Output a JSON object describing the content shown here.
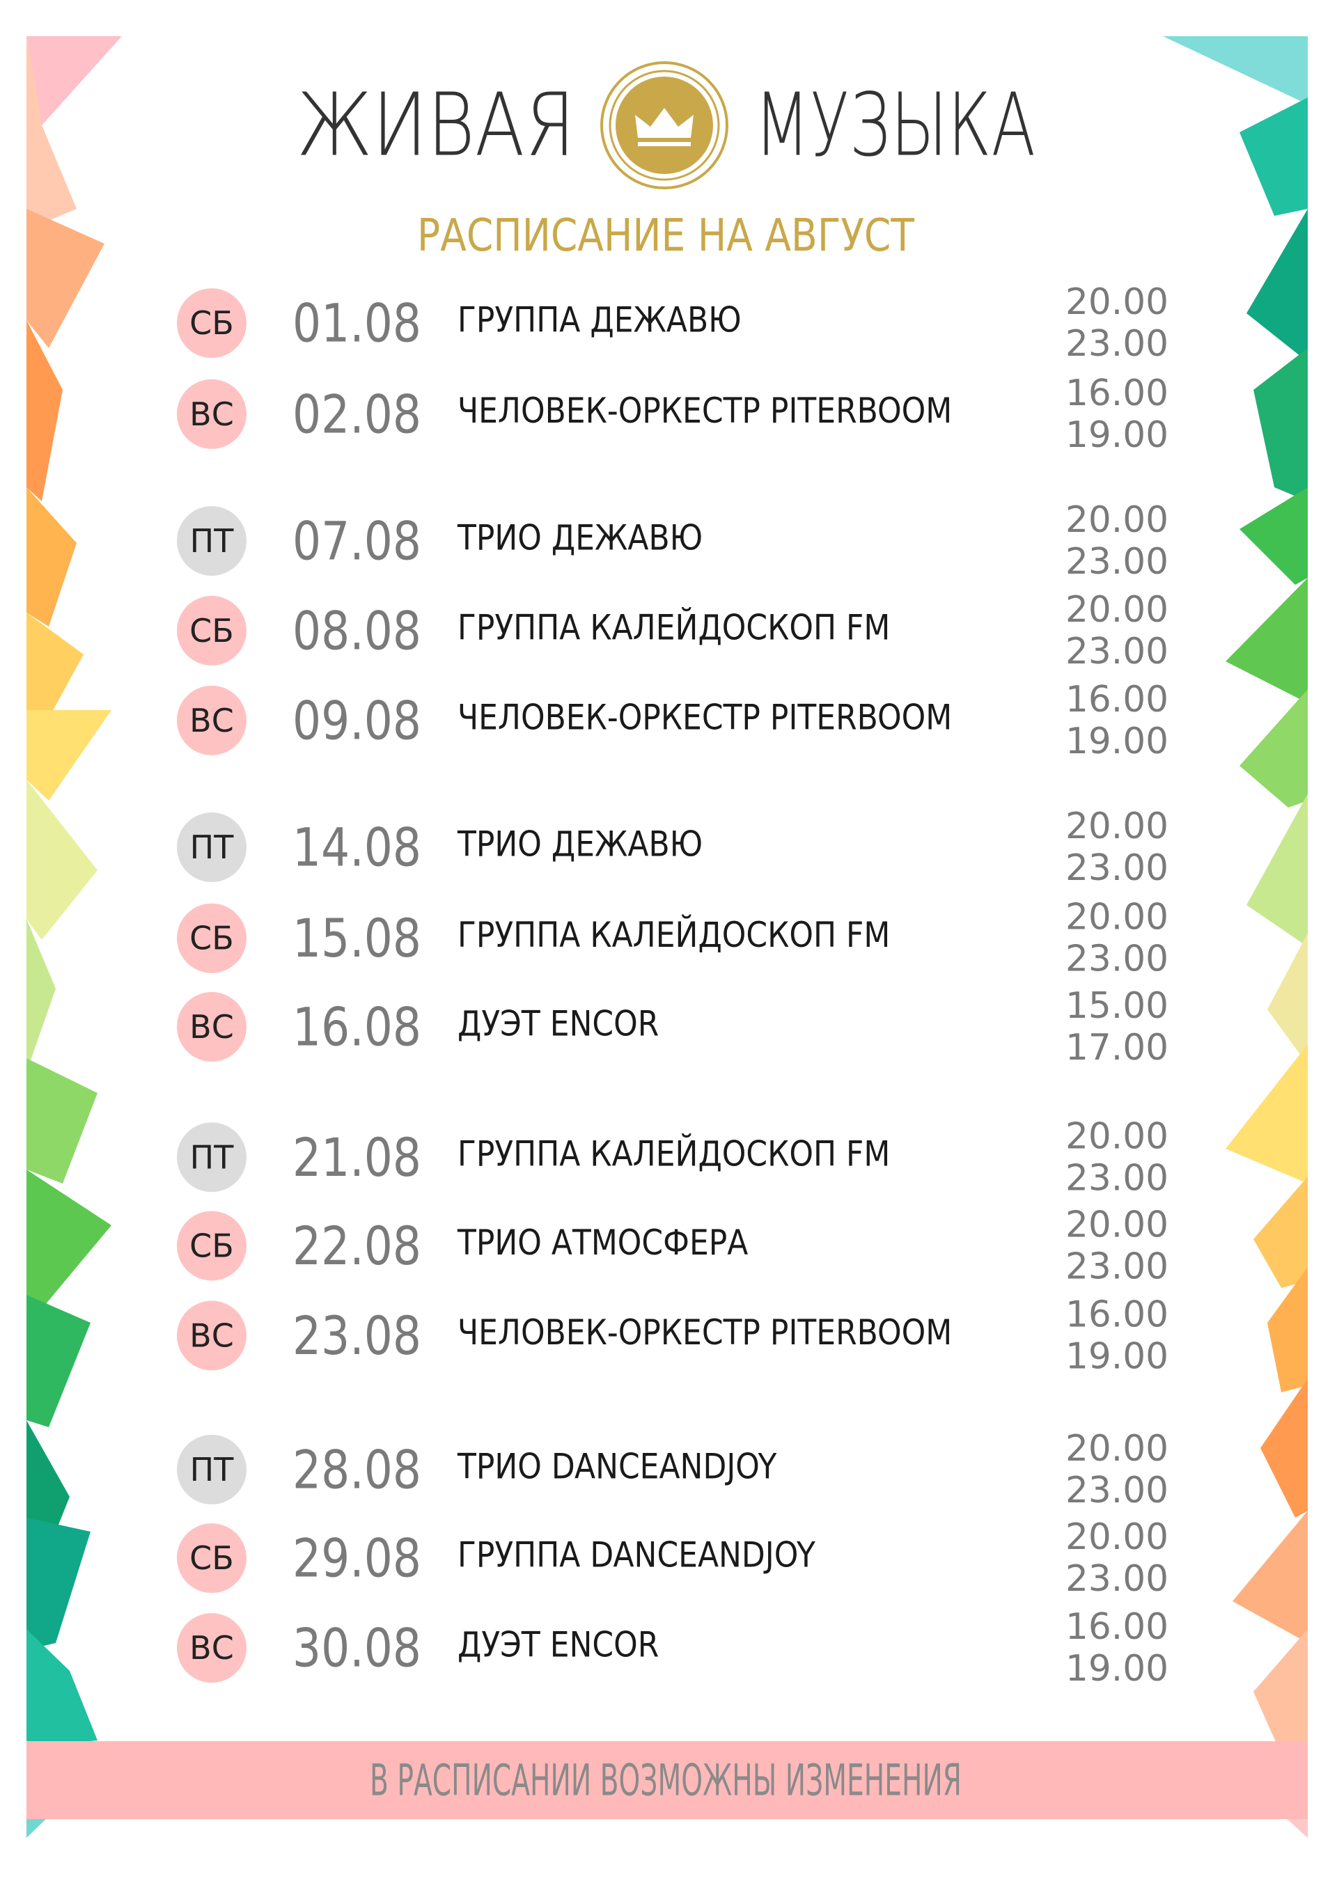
{
  "header": {
    "brand_left": "ЖИВАЯ",
    "brand_right": "МУЗЫКА",
    "subtitle": "РАСПИСАНИЕ НА АВГУСТ"
  },
  "badge_colors": {
    "weekend": "#ffc2c2",
    "friday": "#dcdcdc"
  },
  "schedule": [
    {
      "day": "СБ",
      "badge": "weekend",
      "date": "01.08",
      "event": "ГРУППА ДЕЖАВЮ",
      "times": [
        "20.00",
        "23.00"
      ]
    },
    {
      "day": "ВС",
      "badge": "weekend",
      "date": "02.08",
      "event": "ЧЕЛОВЕК-ОРКЕСТР PITERBOOM",
      "times": [
        "16.00",
        "19.00"
      ]
    },
    {
      "day": "ПТ",
      "badge": "friday",
      "date": "07.08",
      "event": "ТРИО ДЕЖАВЮ",
      "times": [
        "20.00",
        "23.00"
      ]
    },
    {
      "day": "СБ",
      "badge": "weekend",
      "date": "08.08",
      "event": "ГРУППА КАЛЕЙДОСКОП FM",
      "times": [
        "20.00",
        "23.00"
      ]
    },
    {
      "day": "ВС",
      "badge": "weekend",
      "date": "09.08",
      "event": "ЧЕЛОВЕК-ОРКЕСТР PITERBOOM",
      "times": [
        "16.00",
        "19.00"
      ]
    },
    {
      "day": "ПТ",
      "badge": "friday",
      "date": "14.08",
      "event": "ТРИО ДЕЖАВЮ",
      "times": [
        "20.00",
        "23.00"
      ]
    },
    {
      "day": "СБ",
      "badge": "weekend",
      "date": "15.08",
      "event": "ГРУППА КАЛЕЙДОСКОП FM",
      "times": [
        "20.00",
        "23.00"
      ]
    },
    {
      "day": "ВС",
      "badge": "weekend",
      "date": "16.08",
      "event": "ДУЭТ ENCOR",
      "times": [
        "15.00",
        "17.00"
      ]
    },
    {
      "day": "ПТ",
      "badge": "friday",
      "date": "21.08",
      "event": "ГРУППА КАЛЕЙДОСКОП FM",
      "times": [
        "20.00",
        "23.00"
      ]
    },
    {
      "day": "СБ",
      "badge": "weekend",
      "date": "22.08",
      "event": "ТРИО АТМОСФЕРА",
      "times": [
        "20.00",
        "23.00"
      ]
    },
    {
      "day": "ВС",
      "badge": "weekend",
      "date": "23.08",
      "event": "ЧЕЛОВЕК-ОРКЕСТР PITERBOOM",
      "times": [
        "16.00",
        "19.00"
      ]
    },
    {
      "day": "ПТ",
      "badge": "friday",
      "date": "28.08",
      "event": "ТРИО DANCEANDJOY",
      "times": [
        "20.00",
        "23.00"
      ]
    },
    {
      "day": "СБ",
      "badge": "weekend",
      "date": "29.08",
      "event": "ГРУППА DANCEANDJOY",
      "times": [
        "20.00",
        "23.00"
      ]
    },
    {
      "day": "ВС",
      "badge": "weekend",
      "date": "30.08",
      "event": "ДУЭТ ENCOR",
      "times": [
        "16.00",
        "19.00"
      ]
    }
  ],
  "footer": "В РАСПИСАНИИ ВОЗМОЖНЫ ИЗМЕНЕНИЯ"
}
